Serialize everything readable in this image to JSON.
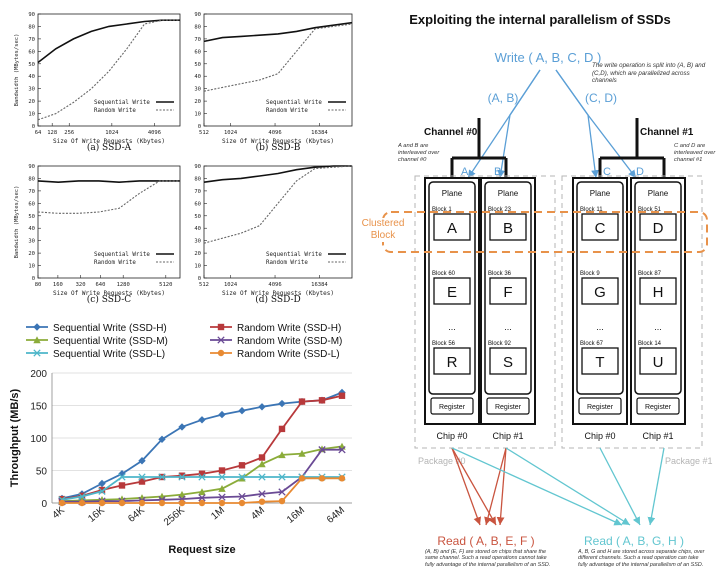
{
  "small_charts": [
    {
      "id": "a",
      "caption": "(a) SSD-A",
      "ylabel": "Bandwidth (MBytes/sec)",
      "xlabel": "Size Of Write Requests (Kbytes)",
      "yticks": [
        "0",
        "10",
        "20",
        "30",
        "40",
        "50",
        "60",
        "70",
        "80",
        "90"
      ],
      "xticks": [
        "64",
        "128",
        "256",
        "1024",
        "4096"
      ],
      "legend": [
        "Sequential Write",
        "Random Write"
      ],
      "chart_data": {
        "type": "line",
        "x": [
          64,
          128,
          256,
          512,
          1024,
          2048,
          4096,
          8192,
          16384
        ],
        "ylim": [
          0,
          90
        ],
        "series": [
          {
            "name": "Sequential Write",
            "style": "solid",
            "values": [
              51,
              62,
              70,
              76,
              80,
              82,
              84,
              85,
              85
            ]
          },
          {
            "name": "Random Write",
            "style": "dotted",
            "values": [
              5,
              10,
              19,
              30,
              44,
              62,
              82,
              85,
              85
            ]
          }
        ]
      }
    },
    {
      "id": "b",
      "caption": "(b) SSD-B",
      "ylabel": "",
      "xlabel": "Size Of Write Requests (Kbytes)",
      "yticks": [
        "0",
        "10",
        "20",
        "30",
        "40",
        "50",
        "60",
        "70",
        "80",
        "90"
      ],
      "xticks": [
        "512",
        "1024",
        "4096",
        "16384"
      ],
      "legend": [
        "Sequential Write",
        "Random Write"
      ],
      "chart_data": {
        "type": "line",
        "x": [
          256,
          512,
          1024,
          2048,
          4096,
          8192,
          16384,
          32768,
          65536
        ],
        "ylim": [
          0,
          90
        ],
        "series": [
          {
            "name": "Sequential Write",
            "style": "solid",
            "values": [
              68,
              71,
              72,
              73,
              74,
              76,
              79,
              81,
              83
            ]
          },
          {
            "name": "Random Write",
            "style": "dotted",
            "values": [
              28,
              31,
              34,
              37,
              42,
              60,
              78,
              80,
              82
            ]
          }
        ]
      }
    },
    {
      "id": "c",
      "caption": "(c) SSD-C",
      "ylabel": "Bandwidth (MBytes/sec)",
      "xlabel": "Size Of Write Requests (Kbytes)",
      "yticks": [
        "0",
        "10",
        "20",
        "30",
        "40",
        "50",
        "60",
        "70",
        "80",
        "90"
      ],
      "xticks": [
        "80",
        "160",
        "320",
        "640",
        "1280",
        "5120"
      ],
      "legend": [
        "Sequential Write",
        "Random Write"
      ],
      "chart_data": {
        "type": "line",
        "x": [
          80,
          160,
          320,
          640,
          1280,
          2560,
          5120,
          10240
        ],
        "ylim": [
          0,
          90
        ],
        "series": [
          {
            "name": "Sequential Write",
            "style": "solid",
            "values": [
              78,
              77,
              78,
              78,
              77,
              78,
              78,
              78
            ]
          },
          {
            "name": "Random Write",
            "style": "dotted",
            "values": [
              53,
              52,
              52,
              53,
              56,
              68,
              78,
              78
            ]
          }
        ]
      }
    },
    {
      "id": "d",
      "caption": "(d) SSD-D",
      "ylabel": "",
      "xlabel": "Size Of Write Requests (Kbytes)",
      "yticks": [
        "0",
        "10",
        "20",
        "30",
        "40",
        "50",
        "60",
        "70",
        "80",
        "90"
      ],
      "xticks": [
        "512",
        "1024",
        "4096",
        "16384"
      ],
      "legend": [
        "Sequential Write",
        "Random Write"
      ],
      "chart_data": {
        "type": "line",
        "x": [
          256,
          512,
          1024,
          2048,
          4096,
          8192,
          16384,
          32768,
          65536
        ],
        "ylim": [
          0,
          90
        ],
        "series": [
          {
            "name": "Sequential Write",
            "style": "solid",
            "values": [
              77,
              79,
              80,
              82,
              84,
              87,
              89,
              90,
              90
            ]
          },
          {
            "name": "Random Write",
            "style": "dotted",
            "values": [
              28,
              32,
              36,
              42,
              60,
              78,
              88,
              89,
              90
            ]
          }
        ]
      }
    }
  ],
  "big_chart": {
    "ylabel": "Throughput (MB/s)",
    "xlabel": "Request size",
    "yticks": [
      "0",
      "50",
      "100",
      "150",
      "200"
    ],
    "xticks": [
      "4K",
      "16K",
      "64K",
      "256K",
      "1M",
      "4M",
      "16M",
      "64M"
    ],
    "chart_data": {
      "type": "line",
      "x_index": [
        0,
        1,
        2,
        3,
        4,
        5,
        6,
        7,
        8,
        9,
        10,
        11,
        12,
        13,
        14
      ],
      "ylim": [
        0,
        200
      ],
      "series": [
        {
          "name": "Sequential Write (SSD-H)",
          "color": "#3b75b5",
          "marker": "diamond",
          "values": [
            7,
            14,
            30,
            45,
            65,
            98,
            117,
            128,
            136,
            142,
            148,
            153,
            156,
            158,
            170
          ]
        },
        {
          "name": "Random Write (SSD-H)",
          "color": "#b8393b",
          "marker": "square",
          "values": [
            6,
            11,
            20,
            27,
            33,
            40,
            42,
            45,
            50,
            58,
            70,
            114,
            156,
            158,
            165
          ]
        },
        {
          "name": "Sequential Write (SSD-M)",
          "color": "#8bac3a",
          "marker": "triangle",
          "values": [
            3,
            4,
            5,
            6,
            8,
            10,
            13,
            17,
            22,
            38,
            60,
            74,
            76,
            83,
            87
          ]
        },
        {
          "name": "Random Write (SSD-M)",
          "color": "#6a4a95",
          "marker": "x",
          "values": [
            2,
            2,
            3,
            3,
            4,
            5,
            6,
            8,
            9,
            10,
            14,
            17,
            40,
            82,
            82
          ]
        },
        {
          "name": "Sequential Write (SSD-L)",
          "color": "#4db6c9",
          "marker": "x",
          "values": [
            5,
            10,
            18,
            40,
            40,
            40,
            40,
            40,
            40,
            40,
            40,
            40,
            40,
            40,
            40
          ]
        },
        {
          "name": "Random Write (SSD-L)",
          "color": "#e88a32",
          "marker": "circle",
          "values": [
            0,
            0,
            0,
            0,
            0,
            0,
            0,
            0,
            0,
            0,
            2,
            3,
            38,
            38,
            38
          ]
        }
      ]
    }
  },
  "diagram": {
    "title": "Exploiting the internal parallelism of SSDs",
    "write_label": "Write ( A, B, C, D )",
    "write_note": "The write operation is split into (A, B) and (C,D), which are parallelized across channels",
    "ab_label": "(A, B)",
    "cd_label": "(C, D)",
    "channel0": "Channel #0",
    "channel1": "Channel #1",
    "ab_note": "A and B are interleaved over channel #0",
    "cd_note": "C and D are interleaved over channel #1",
    "clustered_block": "Clustered Block",
    "chip_letters": [
      "A",
      "B",
      "C",
      "D"
    ],
    "chips": [
      {
        "plane": "Plane",
        "blocks": [
          {
            "label": "Block 1",
            "letter": "A"
          },
          {
            "label": "Block 60",
            "letter": "E"
          },
          {
            "label": "Block 56",
            "letter": "R"
          }
        ],
        "register": "Register",
        "chip": "Chip #0"
      },
      {
        "plane": "Plane",
        "blocks": [
          {
            "label": "Block 23",
            "letter": "B"
          },
          {
            "label": "Block 36",
            "letter": "F"
          },
          {
            "label": "Block 92",
            "letter": "S"
          }
        ],
        "register": "Register",
        "chip": "Chip #1"
      },
      {
        "plane": "Plane",
        "blocks": [
          {
            "label": "Block 11",
            "letter": "C"
          },
          {
            "label": "Block 9",
            "letter": "G"
          },
          {
            "label": "Block 67",
            "letter": "T"
          }
        ],
        "register": "Register",
        "chip": "Chip #0"
      },
      {
        "plane": "Plane",
        "blocks": [
          {
            "label": "Block 51",
            "letter": "D"
          },
          {
            "label": "Block 87",
            "letter": "H"
          },
          {
            "label": "Block 14",
            "letter": "U"
          }
        ],
        "register": "Register",
        "chip": "Chip #1"
      }
    ],
    "ellipsis": "...",
    "package0": "Package #0",
    "package1": "Package #1",
    "read1_label": "Read ( A, B, E, F )",
    "read1_note": "(A, B) and (E, F) are stored on chips that share the same channel. Such a read operations cannot take fully advantage of the internal parallelism of an SSD.",
    "read2_label": "Read ( A, B, G, H )",
    "read2_note": "A, B, G and H are stored across separate chips, over different channels. Such a read operation can take fully advantage of the internal parallelism of an SSD.",
    "colors": {
      "blue": "#5b9fd6",
      "orange": "#e8924a",
      "red": "#c9543f",
      "teal": "#62c6d0",
      "grey": "#b5b5b5"
    }
  }
}
